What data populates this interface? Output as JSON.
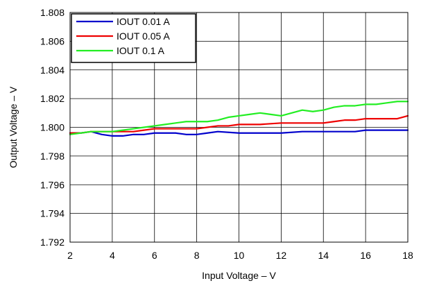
{
  "chart_data": {
    "type": "line",
    "title": "",
    "xlabel": "Input Voltage – V",
    "ylabel": "Output Voltage – V",
    "xlim": [
      2,
      18
    ],
    "ylim": [
      1.792,
      1.808
    ],
    "x_ticks": [
      2,
      4,
      6,
      8,
      10,
      12,
      14,
      16,
      18
    ],
    "y_ticks": [
      1.792,
      1.794,
      1.796,
      1.798,
      1.8,
      1.802,
      1.804,
      1.806,
      1.808
    ],
    "y_tick_labels": [
      "1.792",
      "1.794",
      "1.796",
      "1.798",
      "1.800",
      "1.802",
      "1.804",
      "1.806",
      "1.808"
    ],
    "grid": true,
    "legend_position": "top-left",
    "series": [
      {
        "name": "IOUT 0.01 A",
        "color": "#0000cc",
        "x": [
          2,
          2.5,
          3,
          3.5,
          4,
          4.5,
          5,
          5.5,
          6,
          6.5,
          7,
          7.5,
          8,
          8.5,
          9,
          10,
          11,
          12,
          13,
          14,
          14.5,
          15,
          15.5,
          16,
          16.5,
          17,
          17.5,
          18
        ],
        "y": [
          1.7996,
          1.7996,
          1.7997,
          1.7995,
          1.7994,
          1.7994,
          1.7995,
          1.7995,
          1.7996,
          1.7996,
          1.7996,
          1.7995,
          1.7995,
          1.7996,
          1.7997,
          1.7996,
          1.7996,
          1.7996,
          1.7997,
          1.7997,
          1.7997,
          1.7997,
          1.7997,
          1.7998,
          1.7998,
          1.7998,
          1.7998,
          1.7998
        ]
      },
      {
        "name": "IOUT 0.05 A",
        "color": "#ee0000",
        "x": [
          2,
          2.5,
          3,
          3.5,
          4,
          4.5,
          5,
          5.5,
          6,
          6.5,
          7,
          7.5,
          8,
          8.5,
          9,
          9.5,
          10,
          11,
          12,
          13,
          14,
          14.5,
          15,
          15.5,
          16,
          16.5,
          17,
          17.5,
          18
        ],
        "y": [
          1.7996,
          1.7996,
          1.7997,
          1.7997,
          1.7997,
          1.7997,
          1.7997,
          1.7998,
          1.7999,
          1.7999,
          1.7999,
          1.7999,
          1.7999,
          1.8,
          1.8001,
          1.8001,
          1.8002,
          1.8002,
          1.8003,
          1.8003,
          1.8003,
          1.8004,
          1.8005,
          1.8005,
          1.8006,
          1.8006,
          1.8006,
          1.8006,
          1.8008
        ]
      },
      {
        "name": "IOUT 0.1 A",
        "color": "#22ee22",
        "x": [
          2,
          2.5,
          3,
          3.5,
          4,
          4.5,
          5,
          5.5,
          6,
          6.5,
          7,
          7.5,
          8,
          8.5,
          9,
          9.5,
          10,
          10.5,
          11,
          11.5,
          12,
          12.5,
          13,
          13.5,
          14,
          14.5,
          15,
          15.5,
          16,
          16.5,
          17,
          17.5,
          18
        ],
        "y": [
          1.7995,
          1.7996,
          1.7997,
          1.7997,
          1.7997,
          1.7998,
          1.7999,
          1.8,
          1.8001,
          1.8002,
          1.8003,
          1.8004,
          1.8004,
          1.8004,
          1.8005,
          1.8007,
          1.8008,
          1.8009,
          1.801,
          1.8009,
          1.8008,
          1.801,
          1.8012,
          1.8011,
          1.8012,
          1.8014,
          1.8015,
          1.8015,
          1.8016,
          1.8016,
          1.8017,
          1.8018,
          1.8018
        ]
      }
    ]
  }
}
